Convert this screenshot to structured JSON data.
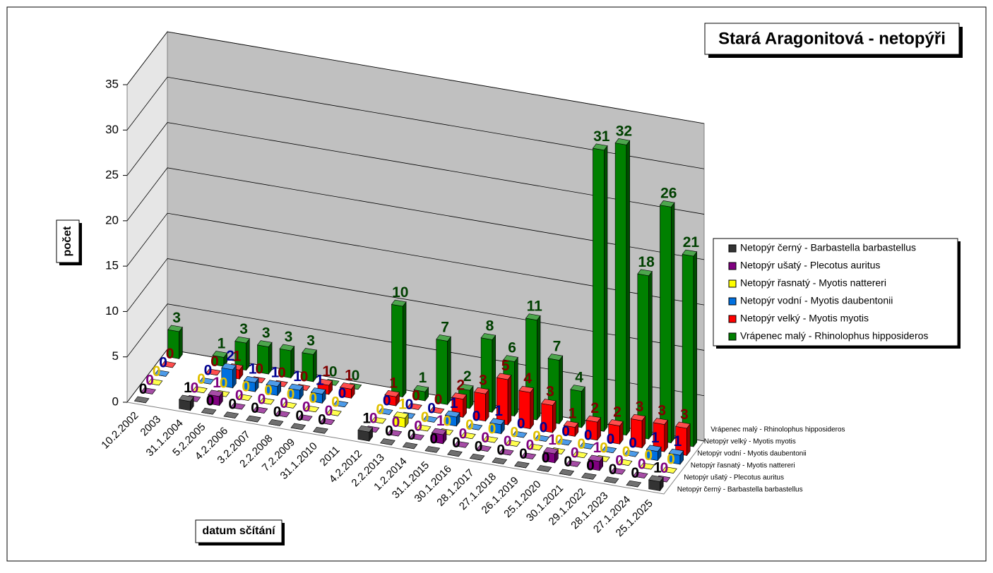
{
  "chart_data": {
    "type": "bar",
    "title": "Stará Aragonitová - netopýři",
    "ylabel": "počet",
    "xlabel": "datum sčítání",
    "categories": [
      "10.2.2002",
      "2003",
      "31.1.2004",
      "5.2.2005",
      "4.2.2006",
      "3.2.2007",
      "2.2.2008",
      "7.2.2009",
      "31.1.2010",
      "2011",
      "4.2.2012",
      "2.2.2013",
      "1.2.2014",
      "31.1.2015",
      "30.1.2016",
      "28.1.2017",
      "27.1.2018",
      "26.1.2019",
      "25.1.2020",
      "30.1.2021",
      "29.1.2022",
      "28.1.2023",
      "27.1.2024",
      "25.1.2025"
    ],
    "series": [
      {
        "name": "Netopýr černý - Barbastella barbastellus",
        "color": "#333333",
        "label_color": "#000000",
        "values": [
          0,
          null,
          1,
          0,
          0,
          0,
          0,
          0,
          0,
          null,
          1,
          0,
          0,
          0,
          0,
          0,
          0,
          0,
          0,
          0,
          0,
          0,
          0,
          1
        ]
      },
      {
        "name": "Netopýr ušatý - Plecotus auritus",
        "color": "#800080",
        "label_color": "#800080",
        "values": [
          0,
          null,
          0,
          1,
          0,
          0,
          0,
          0,
          0,
          null,
          0,
          0,
          0,
          1,
          0,
          0,
          0,
          0,
          1,
          0,
          1,
          0,
          0,
          0
        ]
      },
      {
        "name": "Netopýr řasnatý - Myotis nattereri",
        "color": "#ffff00",
        "label_color": "#e0c000",
        "values": [
          0,
          null,
          0,
          0,
          0,
          0,
          0,
          0,
          0,
          null,
          0,
          1,
          0,
          0,
          0,
          0,
          0,
          0,
          0,
          0,
          0,
          0,
          0,
          0
        ]
      },
      {
        "name": "Netopýr vodní - Myotis daubentonii",
        "color": "#0070e0",
        "label_color": "#000090",
        "values": [
          0,
          null,
          0,
          2,
          1,
          1,
          1,
          1,
          0,
          null,
          0,
          0,
          0,
          1,
          0,
          1,
          0,
          0,
          0,
          0,
          0,
          0,
          1,
          1
        ]
      },
      {
        "name": "Netopýr velký - Myotis myotis",
        "color": "#ff0000",
        "label_color": "#800000",
        "values": [
          0,
          null,
          0,
          1,
          0,
          0,
          0,
          1,
          1,
          null,
          1,
          0,
          0,
          2,
          3,
          5,
          4,
          3,
          1,
          2,
          2,
          3,
          3,
          3
        ]
      },
      {
        "name": "Vrápenec malý - Rhinolophus hipposideros",
        "color": "#008000",
        "label_color": "#004000",
        "values": [
          3,
          null,
          1,
          3,
          3,
          3,
          3,
          0,
          0,
          null,
          10,
          1,
          7,
          2,
          8,
          6,
          11,
          7,
          4,
          31,
          32,
          18,
          26,
          21
        ]
      }
    ],
    "ylim": [
      0,
      35
    ],
    "yticks": [
      0,
      5,
      10,
      15,
      20,
      25,
      30,
      35
    ],
    "grid": true,
    "legend": "right"
  }
}
